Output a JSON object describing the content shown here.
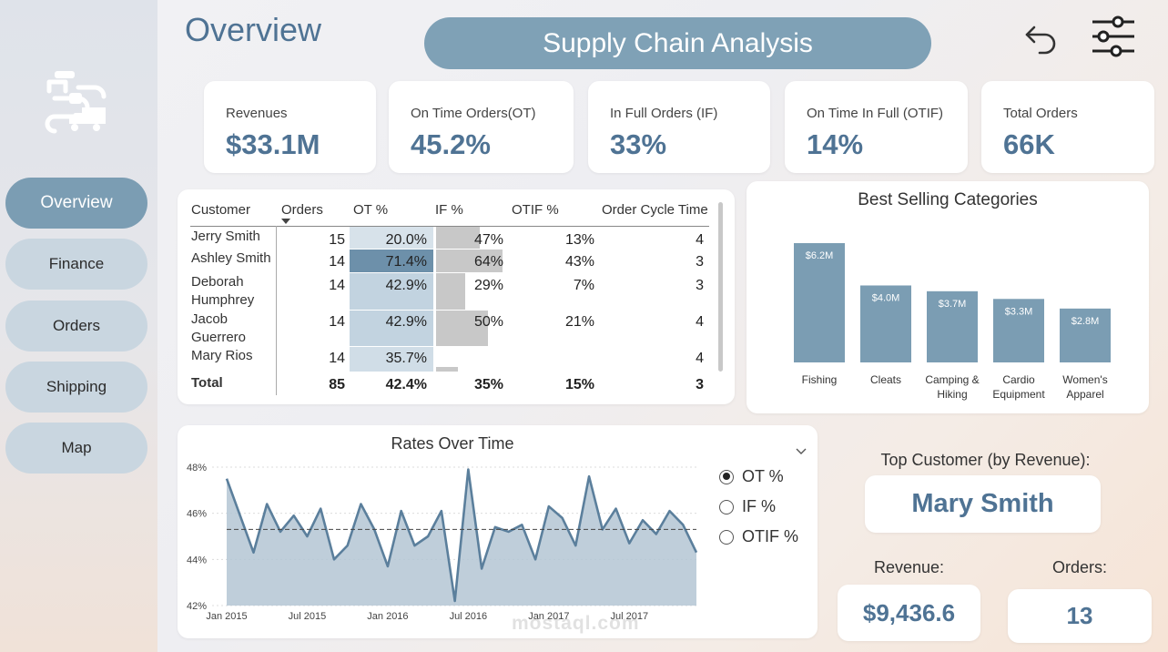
{
  "page": {
    "title": "Overview",
    "banner": "Supply Chain Analysis",
    "watermark": "mostaql.com"
  },
  "nav": [
    {
      "label": "Overview",
      "active": true
    },
    {
      "label": "Finance",
      "active": false
    },
    {
      "label": "Orders",
      "active": false
    },
    {
      "label": "Shipping",
      "active": false
    },
    {
      "label": "Map",
      "active": false
    }
  ],
  "kpis": [
    {
      "label": "Revenues",
      "value": "$33.1M"
    },
    {
      "label": "On Time Orders(OT)",
      "value": "45.2%"
    },
    {
      "label": "In Full Orders (IF)",
      "value": "33%"
    },
    {
      "label": "On Time In Full (OTIF)",
      "value": "14%"
    },
    {
      "label": "Total Orders",
      "value": "66K"
    }
  ],
  "table": {
    "headers": [
      "Customer",
      "Orders",
      "OT %",
      "IF %",
      "OTIF %",
      "Order Cycle Time"
    ],
    "rows": [
      {
        "customer": "Jerry Smith",
        "orders": "15",
        "ot": "20.0%",
        "if": "47%",
        "otif": "13%",
        "cycle": "4",
        "ot_level": 0.2,
        "if_level": 0.47
      },
      {
        "customer": "Ashley Smith",
        "orders": "14",
        "ot": "71.4%",
        "if": "64%",
        "otif": "43%",
        "cycle": "3",
        "ot_level": 0.714,
        "if_level": 0.64
      },
      {
        "customer": "Deborah Humphrey",
        "orders": "14",
        "ot": "42.9%",
        "if": "29%",
        "otif": "7%",
        "cycle": "3",
        "ot_level": 0.429,
        "if_level": 0.29
      },
      {
        "customer": "Jacob Guerrero",
        "orders": "14",
        "ot": "42.9%",
        "if": "50%",
        "otif": "21%",
        "cycle": "4",
        "ot_level": 0.429,
        "if_level": 0.5
      },
      {
        "customer": "Mary Rios",
        "orders": "14",
        "ot": "35.7%",
        "if": "",
        "otif": "",
        "cycle": "4",
        "ot_level": 0.357,
        "if_level": 0.0
      }
    ],
    "total": {
      "label": "Total",
      "orders": "85",
      "ot": "42.4%",
      "if": "35%",
      "otif": "15%",
      "cycle": "3"
    }
  },
  "categories_chart": {
    "title": "Best Selling Categories",
    "type": "bar",
    "categories": [
      "Fishing",
      "Cleats",
      "Camping & Hiking",
      "Cardio Equipment",
      "Women's Apparel"
    ],
    "category_lines": [
      [
        "Fishing"
      ],
      [
        "Cleats"
      ],
      [
        "Camping &",
        "Hiking"
      ],
      [
        "Cardio",
        "Equipment"
      ],
      [
        "Women's",
        "Apparel"
      ]
    ],
    "values": [
      6.2,
      4.0,
      3.7,
      3.3,
      2.8
    ],
    "labels": [
      "$6.2M",
      "$4.0M",
      "$3.7M",
      "$3.3M",
      "$2.8M"
    ],
    "color": "#7b9db3"
  },
  "chart_data": {
    "type": "area",
    "title": "Rates Over Time",
    "xlabel": "",
    "ylabel": "",
    "ylim": [
      42,
      48
    ],
    "yticks": [
      "48%",
      "46%",
      "44%",
      "42%"
    ],
    "xticks": [
      "Jan 2015",
      "Jul 2015",
      "Jan 2016",
      "Jul 2016",
      "Jan 2017",
      "Jul 2017"
    ],
    "series": [
      {
        "name": "OT %",
        "values": [
          47.5,
          45.9,
          44.3,
          46.4,
          45.2,
          45.9,
          45.0,
          46.2,
          44.0,
          44.6,
          46.4,
          45.3,
          43.7,
          46.1,
          44.6,
          45.0,
          46.1,
          42.2,
          47.9,
          43.6,
          45.4,
          45.2,
          45.5,
          44.0,
          46.3,
          45.8,
          44.6,
          47.6,
          45.3,
          46.2,
          44.7,
          45.7,
          45.1,
          46.1,
          45.5,
          44.3
        ]
      }
    ],
    "average": 45.3,
    "color": "#5b7f9c",
    "fill": "#b4c6d4",
    "options": [
      "OT %",
      "IF %",
      "OTIF %"
    ],
    "selected": "OT %"
  },
  "top_customer": {
    "heading": "Top Customer (by Revenue):",
    "name": "Mary Smith",
    "revenue_label": "Revenue:",
    "revenue": "$9,436.6",
    "orders_label": "Orders:",
    "orders": "13"
  },
  "colors": {
    "accent": "#7b9db3",
    "title": "#4f7394",
    "banner": "#7fa1b6"
  }
}
